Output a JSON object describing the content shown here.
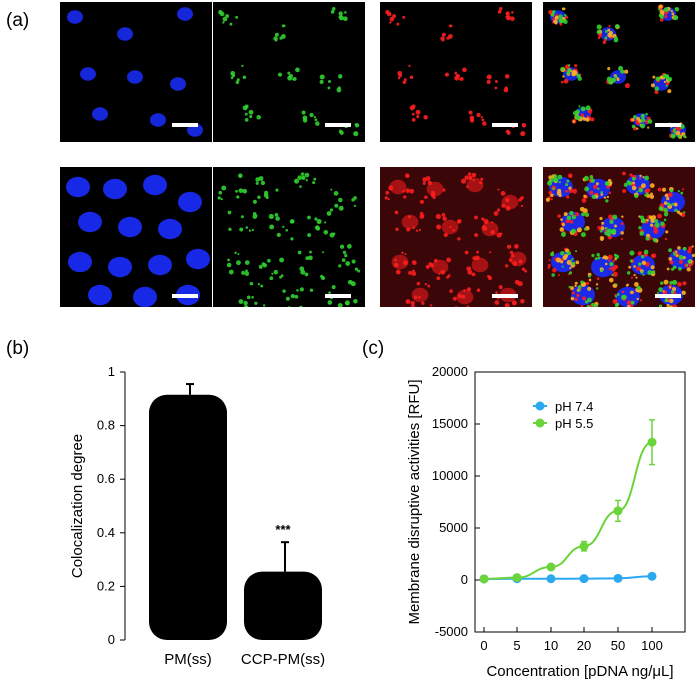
{
  "panel_labels": {
    "a": "(a)",
    "b": "(b)",
    "c": "(c)"
  },
  "microscopy": {
    "rows": [
      {
        "channels": [
          "blue",
          "green",
          "red",
          "merge"
        ]
      },
      {
        "channels": [
          "blue",
          "green",
          "red",
          "merge"
        ]
      }
    ],
    "colors": {
      "blue": "#1a2dff",
      "green": "#2fd02f",
      "red": "#ff1e1e",
      "yellow": "#ffb020",
      "background": "#000000"
    }
  },
  "chart_data": [
    {
      "type": "bar",
      "categories": [
        "PM(ss)",
        "CCP-PM(ss)"
      ],
      "values": [
        0.915,
        0.255
      ],
      "errors": [
        0.04,
        0.11
      ],
      "annotations": [
        "",
        "***"
      ],
      "ylabel": "Colocalization degree",
      "xlabel": "",
      "ylim": [
        0,
        1
      ],
      "yticks": [
        "0",
        "0.2",
        "0.4",
        "0.6",
        "0.8",
        "1"
      ],
      "bar_color": "#000000",
      "grid": false
    },
    {
      "type": "line",
      "categories": [
        "0",
        "5",
        "10",
        "20",
        "50",
        "100"
      ],
      "series": [
        {
          "name": "pH 7.4",
          "values": [
            100,
            120,
            120,
            130,
            160,
            360
          ],
          "errors": [
            0,
            0,
            0,
            0,
            0,
            150
          ],
          "color": "#2aa8f0"
        },
        {
          "name": "pH 5.5",
          "values": [
            100,
            230,
            1250,
            3250,
            6650,
            13250
          ],
          "errors": [
            0,
            0,
            0,
            450,
            1000,
            2150
          ],
          "color": "#6ad43a"
        }
      ],
      "ylabel": "Membrane disruptive activities [RFU]",
      "xlabel": "Concentration [pDNA ng/μL]",
      "ylim": [
        -5000,
        20000
      ],
      "yticks": [
        "-5000",
        "0",
        "5000",
        "10000",
        "15000",
        "20000"
      ],
      "legend_position": "top-left",
      "grid": false
    }
  ]
}
